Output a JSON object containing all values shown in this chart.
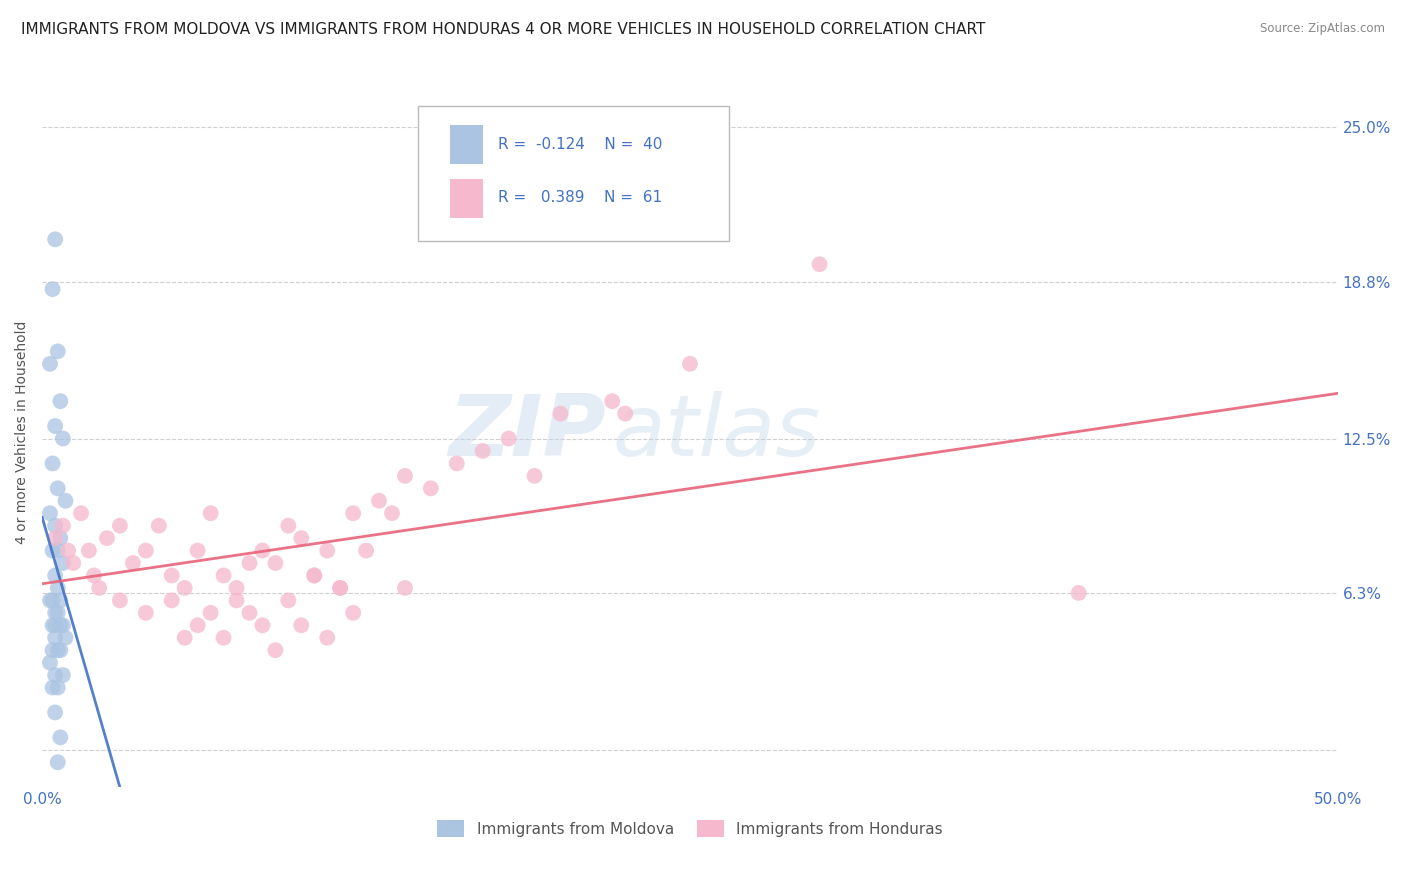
{
  "title": "IMMIGRANTS FROM MOLDOVA VS IMMIGRANTS FROM HONDURAS 4 OR MORE VEHICLES IN HOUSEHOLD CORRELATION CHART",
  "source": "Source: ZipAtlas.com",
  "ylabel": "4 or more Vehicles in Household",
  "yticks": [
    0.0,
    6.3,
    12.5,
    18.8,
    25.0
  ],
  "ytick_labels": [
    "",
    "6.3%",
    "12.5%",
    "18.8%",
    "25.0%"
  ],
  "xlim": [
    0.0,
    50.0
  ],
  "ylim": [
    -1.5,
    27.0
  ],
  "watermark_zip": "ZIP",
  "watermark_atlas": "atlas",
  "moldova_color": "#aac4e2",
  "honduras_color": "#f5b8cc",
  "moldova_line_color": "#4472c4",
  "honduras_line_color": "#e8637a",
  "moldova_R": -0.124,
  "moldova_N": 40,
  "honduras_R": 0.389,
  "honduras_N": 61,
  "title_fontsize": 11,
  "axis_label_fontsize": 10,
  "tick_fontsize": 11,
  "background_color": "#ffffff",
  "moldova_scatter_x": [
    0.5,
    0.4,
    0.6,
    0.3,
    0.7,
    0.5,
    0.8,
    0.4,
    0.6,
    0.9,
    0.3,
    0.5,
    0.7,
    0.4,
    0.6,
    0.8,
    0.5,
    0.6,
    0.7,
    0.4,
    0.3,
    0.5,
    0.6,
    0.4,
    0.5,
    0.7,
    0.8,
    0.9,
    0.5,
    0.6,
    0.4,
    0.7,
    0.3,
    0.5,
    0.8,
    0.6,
    0.4,
    0.5,
    0.7,
    0.6
  ],
  "moldova_scatter_y": [
    20.5,
    18.5,
    16.0,
    15.5,
    14.0,
    13.0,
    12.5,
    11.5,
    10.5,
    10.0,
    9.5,
    9.0,
    8.5,
    8.0,
    8.0,
    7.5,
    7.0,
    6.5,
    6.0,
    6.0,
    6.0,
    5.5,
    5.5,
    5.0,
    5.0,
    5.0,
    5.0,
    4.5,
    4.5,
    4.0,
    4.0,
    4.0,
    3.5,
    3.0,
    3.0,
    2.5,
    2.5,
    1.5,
    0.5,
    -0.5
  ],
  "honduras_scatter_x": [
    0.5,
    0.8,
    1.0,
    1.2,
    1.5,
    1.8,
    2.0,
    2.2,
    2.5,
    3.0,
    3.5,
    4.0,
    4.5,
    5.0,
    5.5,
    6.0,
    6.5,
    7.0,
    7.5,
    8.0,
    8.5,
    9.0,
    9.5,
    10.0,
    10.5,
    11.0,
    11.5,
    12.0,
    12.5,
    13.0,
    13.5,
    14.0,
    15.0,
    16.0,
    17.0,
    18.0,
    19.0,
    20.0,
    22.0,
    25.0,
    3.0,
    4.0,
    5.0,
    6.0,
    7.0,
    8.0,
    9.0,
    10.0,
    11.0,
    12.0,
    14.0,
    5.5,
    6.5,
    7.5,
    8.5,
    9.5,
    10.5,
    11.5,
    40.0,
    30.0,
    22.5
  ],
  "honduras_scatter_y": [
    8.5,
    9.0,
    8.0,
    7.5,
    9.5,
    8.0,
    7.0,
    6.5,
    8.5,
    9.0,
    7.5,
    8.0,
    9.0,
    7.0,
    6.5,
    8.0,
    9.5,
    7.0,
    6.5,
    7.5,
    8.0,
    7.5,
    9.0,
    8.5,
    7.0,
    8.0,
    6.5,
    9.5,
    8.0,
    10.0,
    9.5,
    11.0,
    10.5,
    11.5,
    12.0,
    12.5,
    11.0,
    13.5,
    14.0,
    15.5,
    6.0,
    5.5,
    6.0,
    5.0,
    4.5,
    5.5,
    4.0,
    5.0,
    4.5,
    5.5,
    6.5,
    4.5,
    5.5,
    6.0,
    5.0,
    6.0,
    7.0,
    6.5,
    6.3,
    19.5,
    13.5
  ]
}
